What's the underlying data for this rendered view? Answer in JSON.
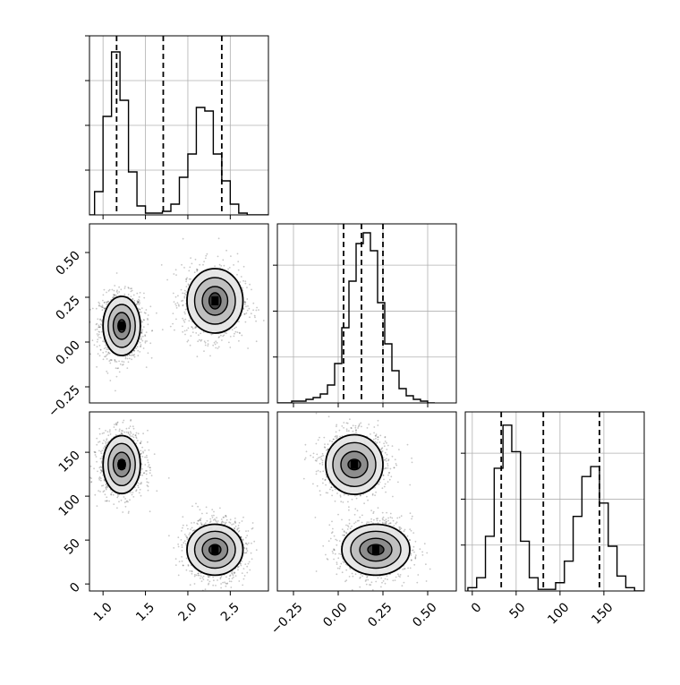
{
  "chart_data": [
    {
      "type": "histogram",
      "panel": "x-marginal",
      "bins": [
        0.8,
        0.9,
        1.0,
        1.1,
        1.2,
        1.3,
        1.4,
        1.5,
        1.6,
        1.7,
        1.8,
        1.9,
        2.0,
        2.1,
        2.2,
        2.3,
        2.4,
        2.5,
        2.6,
        2.7,
        2.8,
        2.9,
        3.0
      ],
      "counts": [
        0.0,
        0.13,
        0.55,
        0.91,
        0.64,
        0.24,
        0.05,
        0.01,
        0.01,
        0.02,
        0.06,
        0.21,
        0.34,
        0.6,
        0.58,
        0.34,
        0.19,
        0.06,
        0.01,
        0.0,
        0.0,
        0.0
      ],
      "quantile_lines": [
        1.16,
        1.71,
        2.4
      ],
      "xlim": [
        0.84,
        2.95
      ],
      "ylim": [
        0,
        1.0
      ],
      "ytick_marks": 4,
      "grid": true
    },
    {
      "type": "histogram",
      "panel": "y-marginal",
      "bins": [
        -0.34,
        -0.3,
        -0.26,
        -0.22,
        -0.18,
        -0.14,
        -0.1,
        -0.06,
        -0.02,
        0.02,
        0.06,
        0.1,
        0.14,
        0.18,
        0.22,
        0.26,
        0.3,
        0.34,
        0.38,
        0.42,
        0.46,
        0.5,
        0.54
      ],
      "counts": [
        0.0,
        0.0,
        0.01,
        0.01,
        0.02,
        0.03,
        0.05,
        0.1,
        0.22,
        0.42,
        0.68,
        0.89,
        0.95,
        0.85,
        0.56,
        0.33,
        0.18,
        0.08,
        0.04,
        0.02,
        0.01,
        0.0
      ],
      "quantile_lines": [
        0.03,
        0.13,
        0.25
      ],
      "xlim": [
        -0.34,
        0.66
      ],
      "ylim": [
        0,
        1.0
      ],
      "ytick_marks": 3,
      "grid": true
    },
    {
      "type": "histogram",
      "panel": "z-marginal",
      "bins": [
        -5,
        5,
        15,
        25,
        35,
        45,
        55,
        65,
        75,
        85,
        95,
        105,
        115,
        125,
        135,
        145,
        155,
        165,
        175,
        185,
        195
      ],
      "counts": [
        0.02,
        0.08,
        0.33,
        0.74,
        1.0,
        0.84,
        0.3,
        0.08,
        0.01,
        0.01,
        0.05,
        0.18,
        0.45,
        0.69,
        0.75,
        0.53,
        0.27,
        0.09,
        0.02,
        0.0
      ],
      "quantile_lines": [
        33,
        81,
        145
      ],
      "xlim": [
        -8,
        196
      ],
      "ylim": [
        0,
        1.08
      ],
      "ytick_marks": 3,
      "xticks": [
        0,
        50,
        100,
        150
      ],
      "grid": true
    },
    {
      "type": "scatter-density",
      "panel": "y-vs-x",
      "xlim": [
        0.84,
        2.95
      ],
      "ylim": [
        -0.34,
        0.66
      ],
      "yticks": [
        -0.25,
        0.0,
        0.25,
        0.5
      ],
      "clusters": [
        {
          "center": [
            1.22,
            0.09
          ],
          "spread": [
            0.13,
            0.09
          ],
          "points": 1200
        },
        {
          "center": [
            2.3,
            0.22
          ],
          "spread": [
            0.18,
            0.1
          ],
          "points": 1150
        }
      ],
      "contours": [
        {
          "center": [
            1.22,
            0.09
          ],
          "radii": [
            [
              0.22,
              0.165
            ],
            [
              0.16,
              0.12
            ],
            [
              0.1,
              0.075
            ],
            [
              0.045,
              0.035
            ]
          ]
        },
        {
          "center": [
            2.32,
            0.23
          ],
          "radii": [
            [
              0.33,
              0.18
            ],
            [
              0.24,
              0.13
            ],
            [
              0.15,
              0.08
            ],
            [
              0.07,
              0.045
            ]
          ]
        }
      ]
    },
    {
      "type": "scatter-density",
      "panel": "z-vs-x",
      "xlim": [
        0.84,
        2.95
      ],
      "ylim": [
        -8,
        196
      ],
      "xticks": [
        1.0,
        1.5,
        2.0,
        2.5
      ],
      "yticks": [
        0,
        50,
        100,
        150
      ],
      "clusters": [
        {
          "center": [
            1.22,
            137
          ],
          "spread": [
            0.13,
            18
          ],
          "points": 1200
        },
        {
          "center": [
            2.32,
            40
          ],
          "spread": [
            0.18,
            17
          ],
          "points": 1150
        }
      ],
      "contours": [
        {
          "center": [
            1.22,
            136
          ],
          "radii": [
            [
              0.22,
              33
            ],
            [
              0.16,
              24
            ],
            [
              0.1,
              14
            ],
            [
              0.045,
              6
            ]
          ]
        },
        {
          "center": [
            2.32,
            39
          ],
          "radii": [
            [
              0.33,
              29
            ],
            [
              0.24,
              21
            ],
            [
              0.15,
              13
            ],
            [
              0.07,
              6
            ]
          ]
        }
      ]
    },
    {
      "type": "scatter-density",
      "panel": "z-vs-y",
      "xlim": [
        -0.34,
        0.66
      ],
      "ylim": [
        -8,
        196
      ],
      "xticks": [
        -0.25,
        0.0,
        0.25,
        0.5
      ],
      "clusters": [
        {
          "center": [
            0.09,
            137
          ],
          "spread": [
            0.09,
            18
          ],
          "points": 1200
        },
        {
          "center": [
            0.21,
            40
          ],
          "spread": [
            0.1,
            17
          ],
          "points": 1150
        }
      ],
      "contours": [
        {
          "center": [
            0.09,
            136
          ],
          "radii": [
            [
              0.16,
              34
            ],
            [
              0.12,
              25
            ],
            [
              0.075,
              15
            ],
            [
              0.035,
              6
            ]
          ]
        },
        {
          "center": [
            0.21,
            39
          ],
          "radii": [
            [
              0.19,
              29
            ],
            [
              0.14,
              21
            ],
            [
              0.09,
              13
            ],
            [
              0.045,
              6
            ]
          ]
        }
      ]
    }
  ],
  "tick_labels": {
    "bottom_left_x": [
      "1.0",
      "1.5",
      "2.0",
      "2.5"
    ],
    "bottom_mid_x": [
      "−0.25",
      "0.00",
      "0.25",
      "0.50"
    ],
    "bottom_right_x": [
      "0",
      "50",
      "100",
      "150"
    ],
    "mid_left_y": [
      "−0.25",
      "0.00",
      "0.25",
      "0.50"
    ],
    "bottom_left_y": [
      "0",
      "50",
      "100",
      "150"
    ]
  },
  "colors": {
    "line": "#000000",
    "grid": "#b0b0b0",
    "point": "#000000",
    "fill_levels": [
      "#ffffff",
      "#e6e6e6",
      "#bdbdbd",
      "#8a8a8a",
      "#3a3a3a"
    ]
  }
}
